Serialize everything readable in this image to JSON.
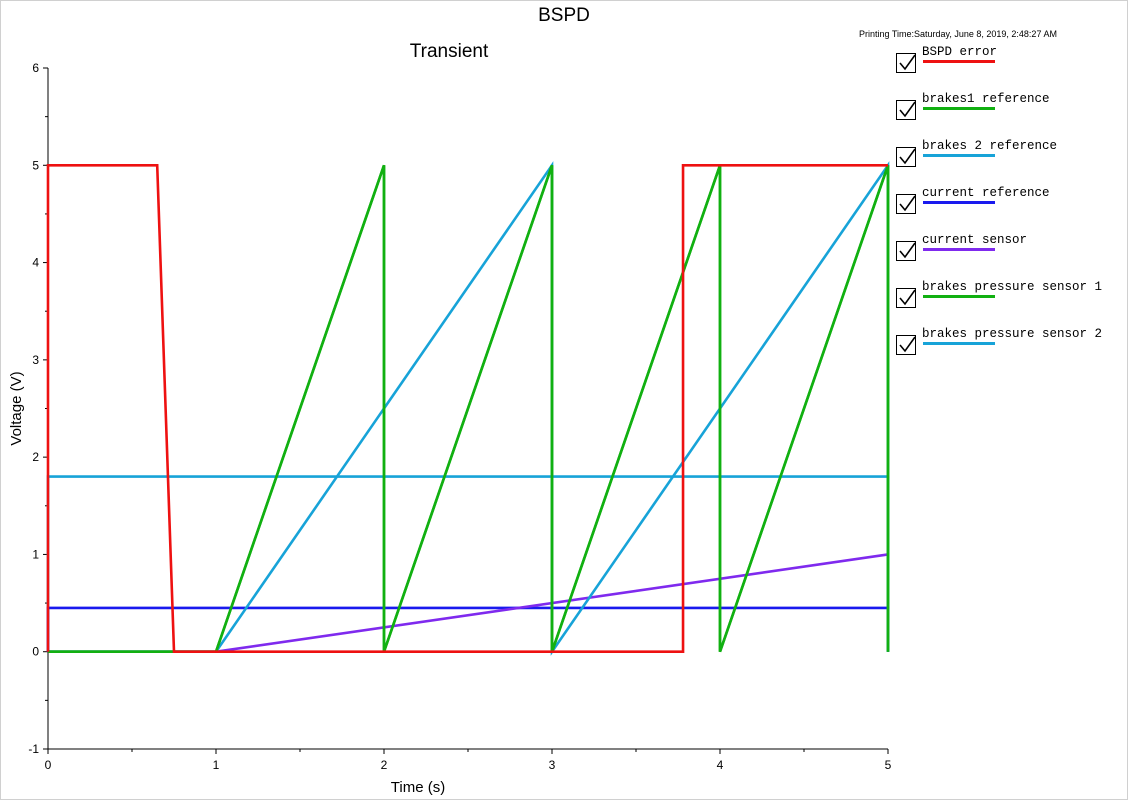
{
  "header": {
    "title": "BSPD",
    "subtitle": "Transient",
    "printing_time": "Printing Time:Saturday, June 8, 2019, 2:48:27 AM"
  },
  "chart_data": {
    "type": "line",
    "title": "BSPD",
    "subtitle": "Transient",
    "xlabel": "Time (s)",
    "ylabel": "Voltage (V)",
    "xlim": [
      0,
      5
    ],
    "ylim": [
      -1,
      6
    ],
    "x_ticks": [
      0,
      1,
      2,
      3,
      4,
      5
    ],
    "y_ticks": [
      -1,
      0,
      1,
      2,
      3,
      4,
      5,
      6
    ],
    "grid": false,
    "legend_position": "right",
    "series": [
      {
        "name": "BSPD error",
        "color": "#ee1111",
        "x": [
          0,
          0,
          0.65,
          0.75,
          3.78,
          3.78,
          5
        ],
        "y": [
          0,
          5,
          5,
          0,
          0,
          5,
          5
        ]
      },
      {
        "name": "brakes1  reference",
        "color": "#11b011",
        "x": [
          0,
          1,
          2,
          2,
          3,
          3,
          4,
          4,
          5,
          5
        ],
        "y": [
          0,
          0,
          5,
          0,
          5,
          0,
          5,
          0,
          5,
          0
        ]
      },
      {
        "name": "brakes 2 reference",
        "color": "#17a3d8",
        "x": [
          0,
          1,
          3,
          3,
          5,
          5
        ],
        "y": [
          0,
          0,
          5,
          0,
          5,
          0
        ]
      },
      {
        "name": "current reference",
        "color": "#1a1aee",
        "x": [
          0,
          0,
          5,
          5
        ],
        "y": [
          0,
          0.45,
          0.45,
          0
        ]
      },
      {
        "name": "current sensor",
        "color": "#7f2aee",
        "x": [
          0,
          1,
          5
        ],
        "y": [
          0,
          0,
          1.0
        ]
      },
      {
        "name": "brakes pressure sensor 1",
        "color": "#11b011",
        "x": [
          0,
          1,
          2,
          2,
          3,
          3,
          4,
          4,
          5,
          5
        ],
        "y": [
          0,
          0,
          5,
          0,
          5,
          0,
          5,
          0,
          5,
          0
        ]
      },
      {
        "name": "brakes pressure sensor 2",
        "color": "#17a3d8",
        "x": [
          0,
          0,
          5,
          5
        ],
        "y": [
          0,
          1.8,
          1.8,
          0
        ]
      }
    ]
  },
  "legend": {
    "items": [
      {
        "label": "BSPD error",
        "color": "#ee1111",
        "checked": true
      },
      {
        "label": "brakes1  reference",
        "color": "#11b011",
        "checked": true
      },
      {
        "label": "brakes 2 reference",
        "color": "#17a3d8",
        "checked": true
      },
      {
        "label": "current reference",
        "color": "#1a1aee",
        "checked": true
      },
      {
        "label": "current sensor",
        "color": "#7f2aee",
        "checked": true
      },
      {
        "label": "brakes pressure sensor 1",
        "color": "#11b011",
        "checked": true
      },
      {
        "label": "brakes pressure sensor 2",
        "color": "#17a3d8",
        "checked": true
      }
    ]
  }
}
